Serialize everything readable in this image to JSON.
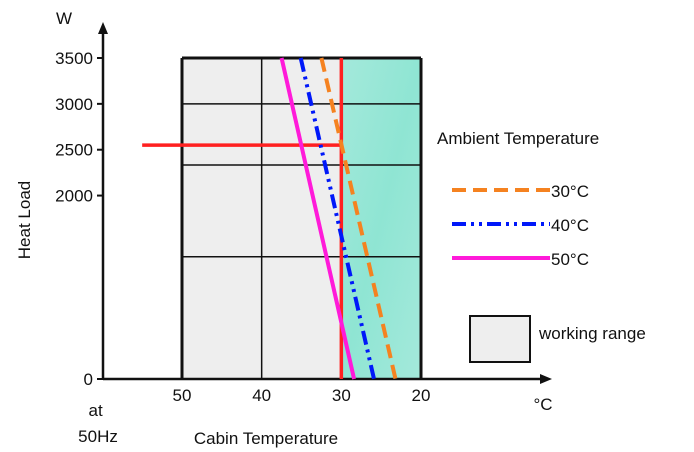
{
  "chart_data": {
    "type": "line",
    "xlabel": "Cabin Temperature",
    "x_unit": "°C",
    "x_note": "at\n50Hz",
    "ylabel": "Heat Load",
    "y_unit": "W",
    "xlim": [
      50,
      20
    ],
    "ylim": [
      0,
      3500
    ],
    "x_axis_reversed": true,
    "x_ticks": [
      50,
      40,
      30,
      20
    ],
    "y_ticks": [
      0,
      2000,
      2500,
      3000,
      3500
    ],
    "grid": true,
    "grid_y": [
      0,
      1333,
      2333,
      3000,
      3500
    ],
    "grid_x": [
      50,
      40,
      30,
      20
    ],
    "legend_title": "Ambient Temperature",
    "legend_position": "right",
    "series": [
      {
        "name": "30°C",
        "color": "#f58220",
        "dash": "dashed",
        "x": [
          32.5,
          23.2
        ],
        "y": [
          3500,
          0
        ]
      },
      {
        "name": "40°C",
        "color": "#0018f9",
        "dash": "dash-dot-dot",
        "x": [
          35.1,
          25.9
        ],
        "y": [
          3500,
          0
        ]
      },
      {
        "name": "50°C",
        "color": "#ff1ad9",
        "dash": "solid",
        "x": [
          37.5,
          28.4
        ],
        "y": [
          3500,
          0
        ]
      }
    ],
    "working_range": {
      "label": "working range",
      "x": [
        50,
        20
      ],
      "y": [
        0,
        3500
      ],
      "color": "#eeeeee"
    },
    "highlight_region": {
      "x": [
        30,
        20
      ],
      "y": [
        0,
        3500
      ],
      "color": "#9fe8d8"
    },
    "reference_lines": [
      {
        "orientation": "vertical",
        "value": 30,
        "color": "#ff2020"
      },
      {
        "orientation": "horizontal",
        "value": 2550,
        "x_from": 55,
        "x_to": 30,
        "color": "#ff2020"
      }
    ]
  }
}
